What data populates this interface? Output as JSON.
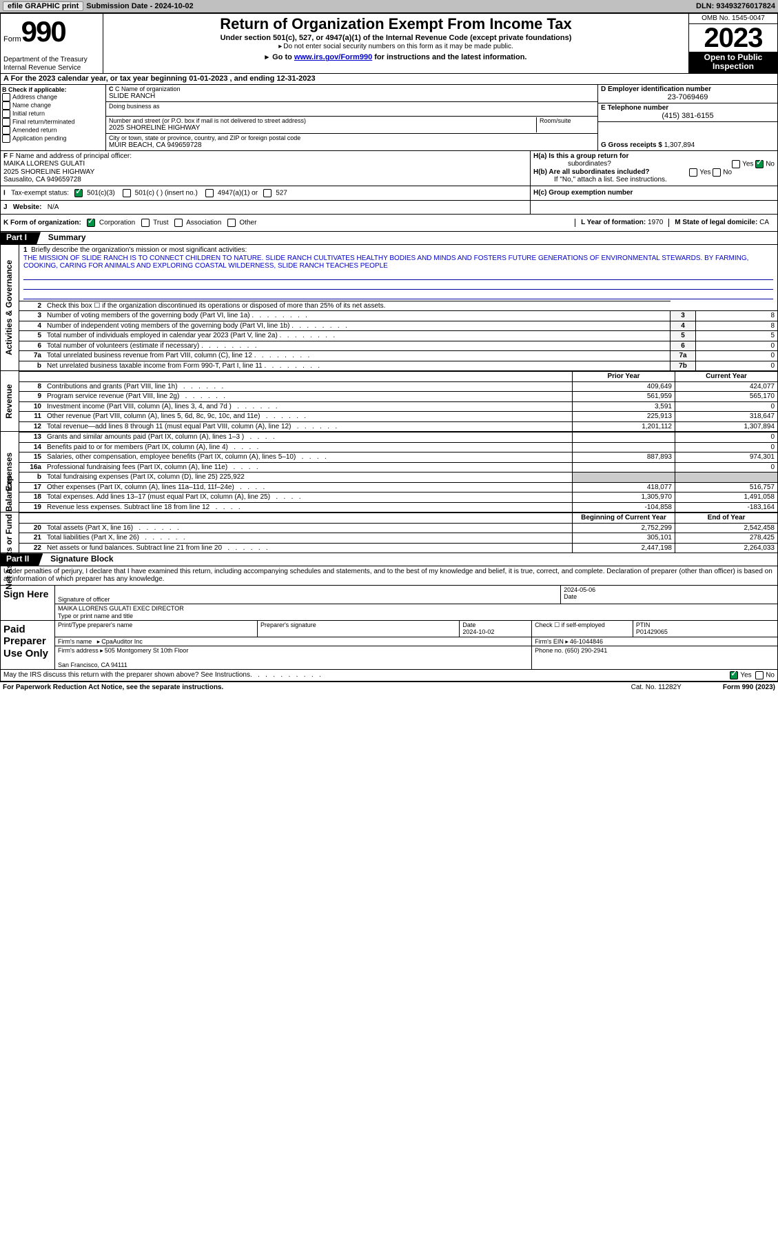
{
  "topbar": {
    "efile": "efile GRAPHIC print",
    "sub_label": "Submission Date - ",
    "sub_date": "2024-10-02",
    "dln_label": "DLN: ",
    "dln": "93493276017824"
  },
  "header": {
    "form_word": "Form",
    "form_num": "990",
    "dept": "Department of the Treasury\nInternal Revenue Service",
    "title": "Return of Organization Exempt From Income Tax",
    "sub1": "Under section 501(c), 527, or 4947(a)(1) of the Internal Revenue Code (except private foundations)",
    "sub2": "Do not enter social security numbers on this form as it may be made public.",
    "goto_pre": "Go to ",
    "goto_url": "www.irs.gov/Form990",
    "goto_post": " for instructions and the latest information.",
    "omb": "OMB No. 1545-0047",
    "year": "2023",
    "open_pub": "Open to Public Inspection"
  },
  "line_a": "A For the 2023 calendar year, or tax year beginning 01-01-2023   , and ending 12-31-2023",
  "box_b": {
    "hdr": "B Check if applicable:",
    "items": [
      "Address change",
      "Name change",
      "Initial return",
      "Final return/terminated",
      "Amended return",
      "Application pending"
    ]
  },
  "box_c": {
    "name_lbl": "C Name of organization",
    "name": "SLIDE RANCH",
    "dba_lbl": "Doing business as",
    "dba": "",
    "street_lbl": "Number and street (or P.O. box if mail is not delivered to street address)",
    "room_lbl": "Room/suite",
    "street": "2025 SHORELINE HIGHWAY",
    "city_lbl": "City or town, state or province, country, and ZIP or foreign postal code",
    "city": "MUIR BEACH, CA  949659728"
  },
  "box_d": {
    "ein_lbl": "D Employer identification number",
    "ein": "23-7069469",
    "tel_lbl": "E Telephone number",
    "tel": "(415) 381-6155",
    "gross_lbl": "G Gross receipts $ ",
    "gross": "1,307,894"
  },
  "row_f": {
    "lbl": "F Name and address of principal officer:",
    "name": "MAIKA LLORENS GULATI",
    "street": "2025 SHORELINE HIGHWAY",
    "city": "Sausalito, CA  949659728"
  },
  "row_h": {
    "ha": "H(a)  Is this a group return for",
    "ha2": "subordinates?",
    "hb": "H(b)  Are all subordinates included?",
    "hb2": "If \"No,\" attach a list. See instructions.",
    "hc": "H(c)  Group exemption number ",
    "yes": "Yes",
    "no": "No"
  },
  "row_i": {
    "lbl": "Tax-exempt status:",
    "c3": "501(c)(3)",
    "c": "501(c) (  ) (insert no.)",
    "a1": "4947(a)(1) or",
    "s527": "527"
  },
  "row_j": {
    "lbl": "Website:",
    "val": "N/A"
  },
  "row_k": {
    "lbl": "K Form of organization:",
    "opts": [
      "Corporation",
      "Trust",
      "Association",
      "Other"
    ],
    "l_lbl": "L Year of formation: ",
    "l_val": "1970",
    "m_lbl": "M State of legal domicile: ",
    "m_val": "CA"
  },
  "part1": {
    "hdr": "Part I",
    "title": "Summary"
  },
  "mission": {
    "n": "1",
    "lbl": "Briefly describe the organization's mission or most significant activities:",
    "text": "THE MISSION OF SLIDE RANCH IS TO CONNECT CHILDREN TO NATURE. SLIDE RANCH CULTIVATES HEALTHY BODIES AND MINDS AND FOSTERS FUTURE GENERATIONS OF ENVIRONMENTAL STEWARDS. BY FARMING, COOKING, CARING FOR ANIMALS AND EXPLORING COASTAL WILDERNESS, SLIDE RANCH TEACHES PEOPLE"
  },
  "gov_group": {
    "side": "Activities & Governance",
    "rows": [
      {
        "n": "2",
        "d": "Check this box ☐ if the organization discontinued its operations or disposed of more than 25% of its net assets.",
        "box": "",
        "v": ""
      },
      {
        "n": "3",
        "d": "Number of voting members of the governing body (Part VI, line 1a)",
        "box": "3",
        "v": "8"
      },
      {
        "n": "4",
        "d": "Number of independent voting members of the governing body (Part VI, line 1b)",
        "box": "4",
        "v": "8"
      },
      {
        "n": "5",
        "d": "Total number of individuals employed in calendar year 2023 (Part V, line 2a)",
        "box": "5",
        "v": "5"
      },
      {
        "n": "6",
        "d": "Total number of volunteers (estimate if necessary)",
        "box": "6",
        "v": "0"
      },
      {
        "n": "7a",
        "d": "Total unrelated business revenue from Part VIII, column (C), line 12",
        "box": "7a",
        "v": "0"
      },
      {
        "n": "b",
        "d": "Net unrelated business taxable income from Form 990-T, Part I, line 11",
        "box": "7b",
        "v": "0"
      }
    ]
  },
  "rev_hdr": {
    "py": "Prior Year",
    "cy": "Current Year"
  },
  "revenue": {
    "side": "Revenue",
    "rows": [
      {
        "n": "8",
        "d": "Contributions and grants (Part VIII, line 1h)",
        "py": "409,649",
        "cy": "424,077"
      },
      {
        "n": "9",
        "d": "Program service revenue (Part VIII, line 2g)",
        "py": "561,959",
        "cy": "565,170"
      },
      {
        "n": "10",
        "d": "Investment income (Part VIII, column (A), lines 3, 4, and 7d )",
        "py": "3,591",
        "cy": "0"
      },
      {
        "n": "11",
        "d": "Other revenue (Part VIII, column (A), lines 5, 6d, 8c, 9c, 10c, and 11e)",
        "py": "225,913",
        "cy": "318,647"
      },
      {
        "n": "12",
        "d": "Total revenue—add lines 8 through 11 (must equal Part VIII, column (A), line 12)",
        "py": "1,201,112",
        "cy": "1,307,894"
      }
    ]
  },
  "expenses": {
    "side": "Expenses",
    "rows": [
      {
        "n": "13",
        "d": "Grants and similar amounts paid (Part IX, column (A), lines 1–3 )",
        "py": "",
        "cy": "0"
      },
      {
        "n": "14",
        "d": "Benefits paid to or for members (Part IX, column (A), line 4)",
        "py": "",
        "cy": "0"
      },
      {
        "n": "15",
        "d": "Salaries, other compensation, employee benefits (Part IX, column (A), lines 5–10)",
        "py": "887,893",
        "cy": "974,301"
      },
      {
        "n": "16a",
        "d": "Professional fundraising fees (Part IX, column (A), line 11e)",
        "py": "",
        "cy": "0"
      },
      {
        "n": "b",
        "d": "Total fundraising expenses (Part IX, column (D), line 25) 225,922",
        "py": "",
        "cy": "",
        "noborder": true
      },
      {
        "n": "17",
        "d": "Other expenses (Part IX, column (A), lines 11a–11d, 11f–24e)",
        "py": "418,077",
        "cy": "516,757"
      },
      {
        "n": "18",
        "d": "Total expenses. Add lines 13–17 (must equal Part IX, column (A), line 25)",
        "py": "1,305,970",
        "cy": "1,491,058"
      },
      {
        "n": "19",
        "d": "Revenue less expenses. Subtract line 18 from line 12",
        "py": "-104,858",
        "cy": "-183,164"
      }
    ]
  },
  "net_hdr": {
    "py": "Beginning of Current Year",
    "cy": "End of Year"
  },
  "netassets": {
    "side": "Net Assets or Fund Balances",
    "rows": [
      {
        "n": "20",
        "d": "Total assets (Part X, line 16)",
        "py": "2,752,299",
        "cy": "2,542,458"
      },
      {
        "n": "21",
        "d": "Total liabilities (Part X, line 26)",
        "py": "305,101",
        "cy": "278,425"
      },
      {
        "n": "22",
        "d": "Net assets or fund balances. Subtract line 21 from line 20",
        "py": "2,447,198",
        "cy": "2,264,033"
      }
    ]
  },
  "part2": {
    "hdr": "Part II",
    "title": "Signature Block"
  },
  "decl": "Under penalties of perjury, I declare that I have examined this return, including accompanying schedules and statements, and to the best of my knowledge and belief, it is true, correct, and complete. Declaration of preparer (other than officer) is based on all information of which preparer has any knowledge.",
  "sign": {
    "side": "Sign Here",
    "sig_lbl": "Signature of officer",
    "date_lbl": "Date",
    "date": "2024-05-06",
    "name": "MAIKA LLORENS GULATI  EXEC DIRECTOR",
    "name_lbl": "Type or print name and title"
  },
  "paid": {
    "side": "Paid Preparer Use Only",
    "p_name_lbl": "Print/Type preparer's name",
    "p_sig_lbl": "Preparer's signature",
    "p_date_lbl": "Date",
    "p_date": "2024-10-02",
    "chk_lbl": "Check ☐ if self-employed",
    "ptin_lbl": "PTIN",
    "ptin": "P01429065",
    "firm_name_lbl": "Firm's name",
    "firm_name": "CpaAuditor Inc",
    "firm_ein_lbl": "Firm's EIN ",
    "firm_ein": "46-1044846",
    "firm_addr_lbl": "Firm's address",
    "firm_addr": "505 Montgomery St 10th Floor",
    "firm_city": "San Francisco, CA  94111",
    "phone_lbl": "Phone no. ",
    "phone": "(650) 290-2941"
  },
  "discuss": "May the IRS discuss this return with the preparer shown above? See Instructions.",
  "footer": {
    "pra": "For Paperwork Reduction Act Notice, see the separate instructions.",
    "cat": "Cat. No. 11282Y",
    "form": "Form 990 (2023)"
  },
  "colors": {
    "accent": "#009245",
    "link": "#0000cc"
  }
}
